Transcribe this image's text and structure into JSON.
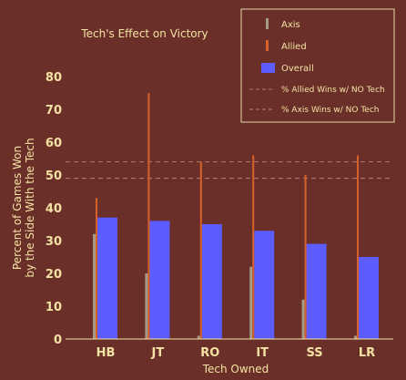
{
  "chart_data": {
    "type": "bar",
    "title": "Tech's Effect on Victory",
    "xlabel": "Tech Owned",
    "ylabel_line1": "Percent of Games Won",
    "ylabel_line2": "by the Side With the Tech",
    "categories": [
      "HB",
      "JT",
      "RO",
      "IT",
      "SS",
      "LR"
    ],
    "ylim": [
      0,
      80
    ],
    "yticks": [
      0,
      10,
      20,
      30,
      40,
      50,
      60,
      70,
      80
    ],
    "grid": false,
    "legend_position": "top-right",
    "series": [
      {
        "name": "Axis",
        "color": "#a89a88",
        "values": [
          32,
          20,
          1,
          22,
          12,
          1
        ]
      },
      {
        "name": "Allied",
        "color": "#d4622a",
        "values": [
          43,
          75,
          54,
          56,
          50,
          56
        ]
      },
      {
        "name": "Overall",
        "color": "#5c5cff",
        "values": [
          37,
          36,
          35,
          33,
          29,
          25
        ]
      }
    ],
    "reference_lines": [
      {
        "name": "% Allied Wins w/ NO Tech",
        "value": 54,
        "color": "#b27a64"
      },
      {
        "name": "% Axis Wins w/ NO Tech",
        "value": 49,
        "color": "#a8887a"
      }
    ]
  }
}
